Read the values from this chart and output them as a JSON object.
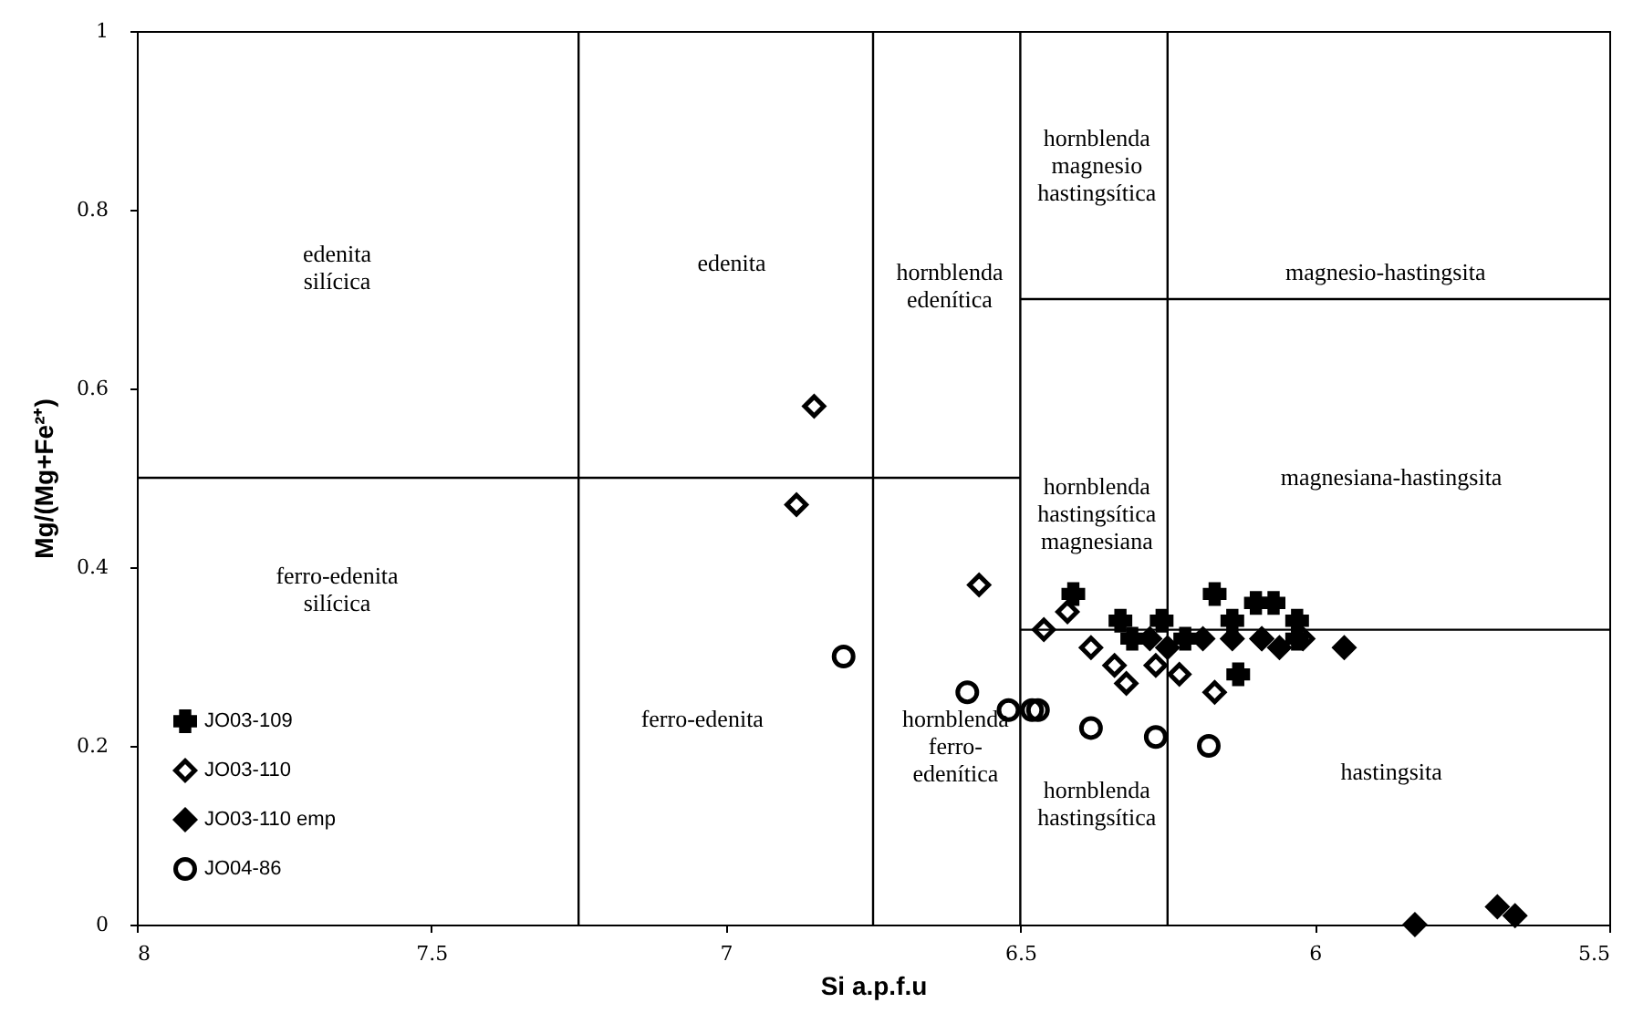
{
  "chart_data": {
    "type": "scatter",
    "xlabel": "Si a.p.f.u",
    "ylabel": "Mg/(Mg+Fe²⁺)",
    "xlim": [
      8,
      5.5
    ],
    "xticks": [
      {
        "value": 8,
        "label": "8"
      },
      7.5,
      {
        "value": 7,
        "label": "7"
      },
      6.5,
      {
        "value": 6,
        "label": "6"
      },
      5.5
    ],
    "ylim": [
      0,
      1
    ],
    "yticks": [
      {
        "value": 0,
        "label": "0"
      },
      0.2,
      0.4,
      0.6,
      0.8,
      {
        "value": 1,
        "label": "1"
      }
    ],
    "grid": false,
    "legend": "bottom left",
    "series": [
      {
        "name": "JO03-109",
        "color": "#000000",
        "marker": "cross",
        "x": [
          6.41,
          6.33,
          6.31,
          6.17,
          6.22,
          6.1,
          6.07,
          6.03,
          6.03,
          6.13,
          6.26,
          6.14
        ],
        "values": [
          0.37,
          0.34,
          0.32,
          0.37,
          0.32,
          0.36,
          0.36,
          0.34,
          0.32,
          0.28,
          0.34,
          0.34
        ]
      },
      {
        "name": "JO03-110",
        "color": "#000000",
        "marker": "diamond",
        "x": [
          6.85,
          6.88,
          6.57,
          6.46,
          6.42,
          6.38,
          6.34,
          6.32,
          6.27,
          6.23,
          6.17,
          6.16,
          6.09,
          6.02
        ],
        "values": [
          0.58,
          0.47,
          0.38,
          0.33,
          0.35,
          0.31,
          0.29,
          0.27,
          0.29,
          0.28,
          0.26,
          null,
          0.32,
          0.32
        ]
      },
      {
        "name": "JO03-110 emp",
        "color": "#000000",
        "marker": "diamond",
        "x": [
          6.28,
          6.25,
          6.19,
          6.14,
          6.09,
          6.06,
          5.95,
          5.83,
          5.69,
          5.66
        ],
        "values": [
          0.32,
          0.31,
          0.32,
          0.32,
          0.32,
          0.31,
          0.31,
          0.0,
          0.02,
          0.01
        ]
      },
      {
        "name": "JO04-86",
        "color": "#000000",
        "marker": "circle",
        "x": [
          6.8,
          6.59,
          6.52,
          6.48,
          6.47,
          6.38,
          6.27,
          6.18
        ],
        "values": [
          0.3,
          0.26,
          0.24,
          0.24,
          0.24,
          0.22,
          0.21,
          0.2
        ]
      },
      {
        "type": "line",
        "color": "#000000",
        "x": [
          7.25,
          7.25
        ],
        "values": [
          0,
          1
        ]
      },
      {
        "type": "line",
        "color": "#000000",
        "x": [
          6.75,
          6.75
        ],
        "values": [
          0,
          1
        ]
      },
      {
        "type": "line",
        "color": "#000000",
        "x": [
          6.5,
          6.5
        ],
        "values": [
          0,
          1
        ]
      },
      {
        "type": "line",
        "color": "#000000",
        "x": [
          6.25,
          6.25
        ],
        "values": [
          0,
          1
        ]
      },
      {
        "type": "line",
        "color": "#000000",
        "x": [
          8,
          6.5
        ],
        "values": [
          0.5,
          0.5
        ]
      },
      {
        "type": "line",
        "color": "#000000",
        "x": [
          6.5,
          5.5
        ],
        "values": [
          0.7,
          0.7
        ]
      },
      {
        "type": "line",
        "color": "#000000",
        "x": [
          6.5,
          5.5
        ],
        "values": [
          0.33,
          0.33
        ]
      }
    ],
    "annotations": [
      "edenita\nsilícica",
      "edenita",
      "hornblenda\nedenítica",
      "hornblenda\nmagnesio\nhastingsítica",
      "magnesio-hastingsita",
      "ferro-edenita\nsilícica",
      "hornblenda\nhastingsítica\nmagnesiana",
      "magnesiana-hastingsita",
      "ferro-edenita",
      "hornblenda\nferro-\nedenítica",
      "hornblenda\nhastingsítica",
      "hastingsita"
    ]
  }
}
